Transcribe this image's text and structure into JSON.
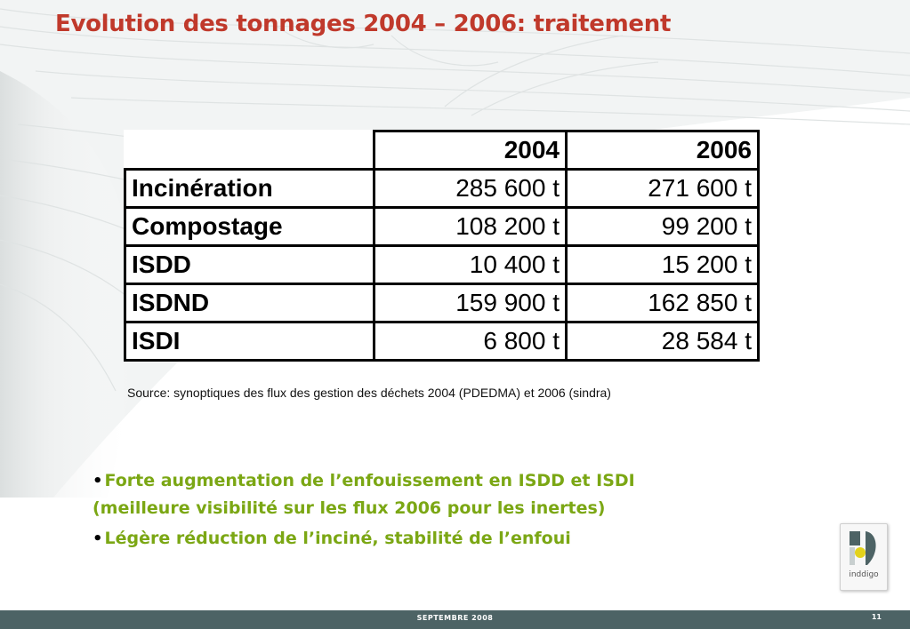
{
  "slide": {
    "title": "Evolution des tonnages 2004 – 2006: traitement",
    "source_note": "Source: synoptiques des flux des gestion des déchets 2004 (PDEDMA) et 2006 (sindra)"
  },
  "table": {
    "headers": [
      "",
      "2004",
      "2006"
    ],
    "rows": [
      {
        "label": "Incinération",
        "v2004": "285 600 t",
        "v2006": "271 600 t"
      },
      {
        "label": "Compostage",
        "v2004": "108 200 t",
        "v2006": "99 200 t"
      },
      {
        "label": "ISDD",
        "v2004": "10 400 t",
        "v2006": "15 200 t"
      },
      {
        "label": "ISDND",
        "v2004": "159 900 t",
        "v2006": "162 850 t"
      },
      {
        "label": "ISDI",
        "v2004": "6 800 t",
        "v2006": "28 584 t"
      }
    ]
  },
  "bullets": {
    "marker": "•",
    "items": [
      "Forte augmentation de l’enfouissement en ISDD et ISDI (meilleure visibilité sur les flux 2006 pour les inertes)",
      "Légère réduction de l’inciné, stabilité de l’enfoui"
    ]
  },
  "logo": {
    "text": "inddigo",
    "icon": "inddigo-logo-icon"
  },
  "footer": {
    "date": "SEPTEMBRE  2008",
    "page_number": "11"
  },
  "colors": {
    "title": "#c0392b",
    "bullet_text": "#7ba714",
    "footer_bar": "#4d6365",
    "logo_yellow": "#e3d21b",
    "logo_teal": "#4d6365"
  }
}
